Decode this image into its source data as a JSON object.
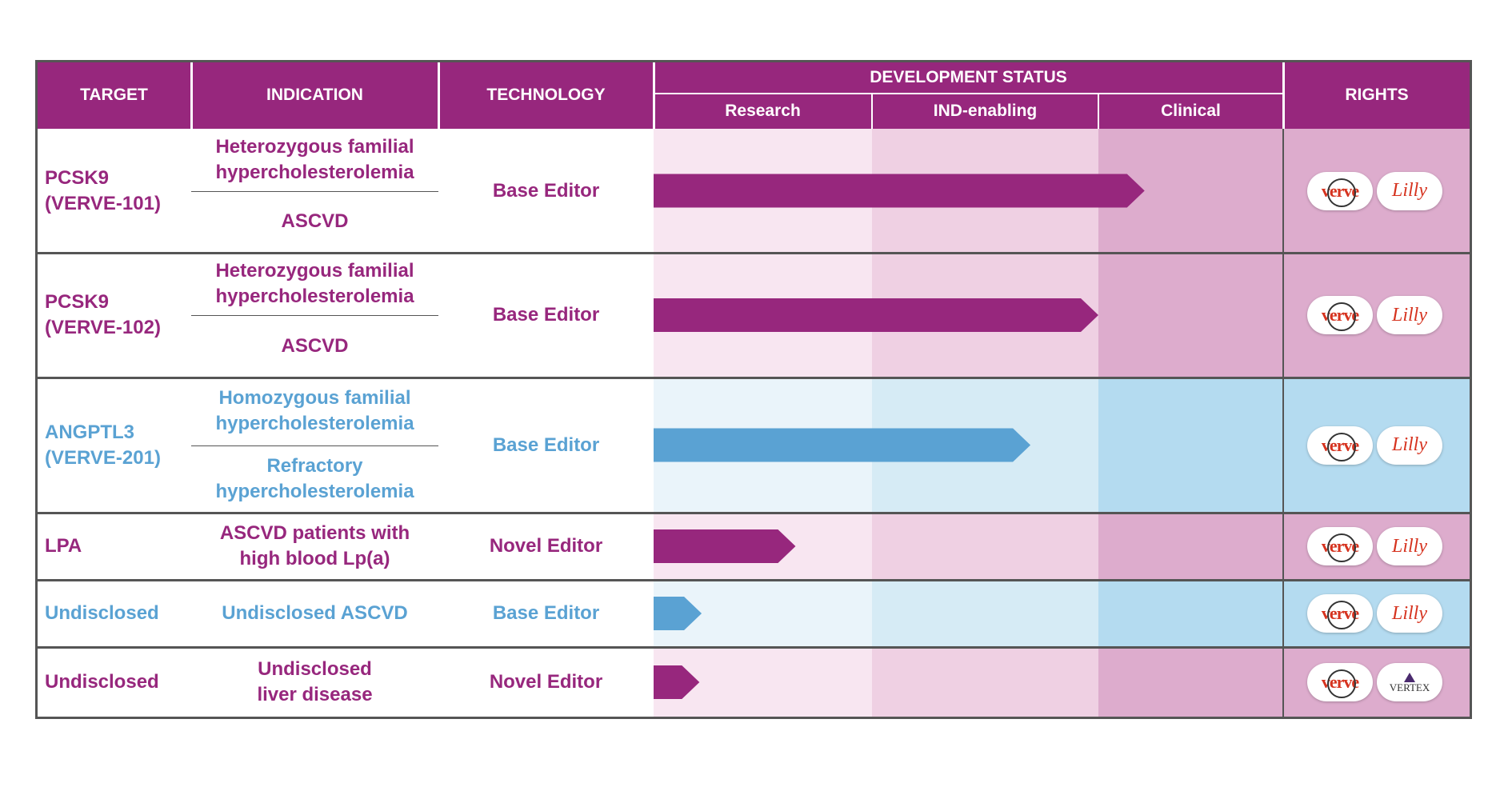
{
  "headers": {
    "target": "TARGET",
    "indication": "INDICATION",
    "technology": "TECHNOLOGY",
    "development_status": "DEVELOPMENT STATUS",
    "rights": "RIGHTS",
    "stages": [
      "Research",
      "IND-enabling",
      "Clinical"
    ]
  },
  "rows": [
    {
      "target": [
        "PCSK9",
        "(VERVE-101)"
      ],
      "indications": [
        [
          "Heterozygous familial",
          "hypercholesterolemia"
        ],
        [
          "ASCVD"
        ]
      ],
      "technology": "Base Editor",
      "theme": "purple",
      "rights": [
        "verve",
        "lilly"
      ]
    },
    {
      "target": [
        "PCSK9",
        "(VERVE-102)"
      ],
      "indications": [
        [
          "Heterozygous familial",
          "hypercholesterolemia"
        ],
        [
          "ASCVD"
        ]
      ],
      "technology": "Base Editor",
      "theme": "purple",
      "rights": [
        "verve",
        "lilly"
      ]
    },
    {
      "target": [
        "ANGPTL3",
        "(VERVE-201)"
      ],
      "indications": [
        [
          "Homozygous familial",
          "hypercholesterolemia"
        ],
        [
          "Refractory",
          "hypercholesterolemia"
        ]
      ],
      "technology": "Base Editor",
      "theme": "blue",
      "rights": [
        "verve",
        "lilly"
      ]
    },
    {
      "target": [
        "LPA"
      ],
      "indications": [
        [
          "ASCVD patients with",
          "high blood Lp(a)"
        ]
      ],
      "technology": "Novel Editor",
      "theme": "purple",
      "rights": [
        "verve",
        "lilly"
      ]
    },
    {
      "target": [
        "Undisclosed"
      ],
      "indications": [
        [
          "Undisclosed ASCVD"
        ]
      ],
      "technology": "Base Editor",
      "theme": "blue",
      "rights": [
        "verve",
        "lilly"
      ]
    },
    {
      "target": [
        "Undisclosed"
      ],
      "indications": [
        [
          "Undisclosed",
          "liver disease"
        ]
      ],
      "technology": "Novel Editor",
      "theme": "purple",
      "rights": [
        "verve",
        "vertex"
      ]
    }
  ],
  "logos": {
    "verve": "verve",
    "lilly": "Lilly",
    "vertex": "VERTEX"
  },
  "colors": {
    "header": "#97277d",
    "purple_text": "#97277d",
    "blue_text": "#5aa2d3",
    "purple_bar": "#97277d",
    "blue_bar": "#5aa2d3",
    "purple_stage_bg": [
      "#f8e6f1",
      "#efd0e3",
      "#ddaccd"
    ],
    "blue_stage_bg": [
      "#eaf4fa",
      "#d6ebf5",
      "#b4dbf0"
    ],
    "purple_rights_bg": "#ddaccd",
    "blue_rights_bg": "#b4dbf0"
  },
  "chart_data": {
    "type": "bar",
    "title": "DEVELOPMENT STATUS",
    "stages": [
      "Research",
      "IND-enabling",
      "Clinical"
    ],
    "categories": [
      "PCSK9 (VERVE-101)",
      "PCSK9 (VERVE-102)",
      "ANGPTL3 (VERVE-201)",
      "LPA",
      "Undisclosed (ASCVD)",
      "Undisclosed (liver disease)"
    ],
    "values": [
      2.25,
      2.0,
      1.7,
      0.65,
      0.22,
      0.21
    ],
    "value_units": "stages completed (0 = start of Research, 3 = end of Clinical)",
    "xlim": [
      0,
      3
    ]
  }
}
